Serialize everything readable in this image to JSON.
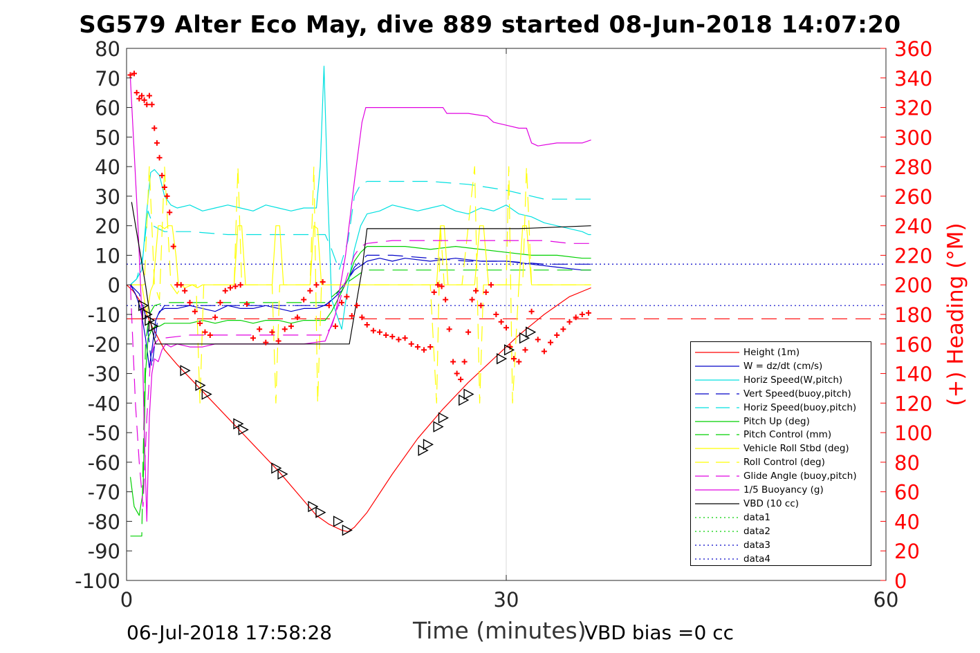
{
  "title": "SG579 Alter Eco May, dive 889 started 08-Jun-2018 14:07:20",
  "footer": {
    "date_stamp": "06-Jul-2018 17:58:28",
    "vbd_bias": "VBD bias =0 cc"
  },
  "colors": {
    "red": "#ff0000",
    "blue": "#0000c8",
    "cyan": "#00e0e0",
    "green": "#00d000",
    "yellow": "#ffff00",
    "magenta": "#e000e0",
    "black": "#000000"
  },
  "chart_data": {
    "type": "line",
    "title": "SG579 Alter Eco May, dive 889 started 08-Jun-2018 14:07:20",
    "xlabel": "Time (minutes)",
    "ylabel_right": "(+) Heading (°M)",
    "xlim": [
      0,
      60
    ],
    "ylim_left": [
      -100,
      80
    ],
    "ylim_right": [
      0,
      360
    ],
    "x_ticks": [
      0,
      30,
      60
    ],
    "x_tick_labels": [
      "0",
      "30",
      "60"
    ],
    "y_ticks_left": [
      80,
      70,
      60,
      50,
      40,
      30,
      20,
      10,
      0,
      -10,
      -20,
      -30,
      -40,
      -50,
      -60,
      -70,
      -80,
      -90,
      -100
    ],
    "y_tick_labels_left": [
      "80",
      "70",
      "60",
      "50",
      "40",
      "30",
      "20",
      "10",
      "0",
      "-10",
      "-20",
      "-30",
      "-40",
      "-50",
      "-60",
      "-70",
      "-80",
      "-90",
      "-100"
    ],
    "y_ticks_right": [
      360,
      340,
      320,
      300,
      280,
      260,
      240,
      220,
      200,
      180,
      160,
      140,
      120,
      100,
      80,
      60,
      40,
      20,
      0
    ],
    "y_tick_labels_right": [
      "360",
      "340",
      "320",
      "300",
      "280",
      "260",
      "240",
      "220",
      "200",
      "180",
      "160",
      "140",
      "120",
      "100",
      "80",
      "60",
      "40",
      "20",
      "0"
    ],
    "grid": "x-major",
    "legend_position": "lower-right",
    "series": [
      {
        "name": "Height (1m)",
        "color": "#ff0000",
        "dash": "solid",
        "x": [
          0,
          0.5,
          1,
          1.5,
          2,
          3,
          4,
          6,
          8,
          10,
          12,
          14,
          15,
          16,
          17,
          17.5,
          18,
          19,
          21,
          23,
          25,
          27,
          29,
          31,
          33,
          35,
          36.7
        ],
        "y": [
          0,
          -2,
          -5,
          -9,
          -14,
          -22,
          -27,
          -36,
          -45,
          -54,
          -63,
          -73,
          -78,
          -81,
          -83,
          -83.5,
          -82,
          -77,
          -64,
          -52,
          -42,
          -33,
          -25,
          -17,
          -10,
          -4,
          -1
        ]
      },
      {
        "name": "W = dz/dt (cm/s)",
        "color": "#0000c8",
        "dash": "solid",
        "x": [
          0.3,
          0.7,
          1.1,
          1.5,
          1.8,
          2.0,
          2.3,
          2.6,
          3.0,
          4,
          5,
          6,
          7,
          8,
          9,
          10,
          11,
          12,
          13,
          14,
          15,
          15.6,
          16,
          16.5,
          17,
          17.5,
          18,
          19,
          20,
          21,
          22,
          24,
          26,
          28,
          30,
          32,
          34,
          36,
          36.7
        ],
        "y": [
          0,
          -3,
          -8,
          -18,
          -28,
          -22,
          -12,
          -9,
          -8,
          -8,
          -7,
          -8,
          -9,
          -7,
          -8,
          -8,
          -7,
          -8,
          -9,
          -8,
          -8,
          -7,
          -6,
          -4,
          -2,
          2,
          5,
          8,
          9,
          8,
          9,
          8,
          9,
          8,
          8,
          7,
          6,
          5,
          5
        ]
      },
      {
        "name": "Horiz Speed(W,pitch)",
        "color": "#00e0e0",
        "dash": "solid",
        "x": [
          0.3,
          0.8,
          1.2,
          1.6,
          1.9,
          2.2,
          2.6,
          3.0,
          3.5,
          4,
          5,
          6,
          7,
          8,
          9,
          10,
          11,
          12,
          13,
          14,
          15,
          15.3,
          15.6,
          15.9,
          16.2,
          16.6,
          17,
          17.5,
          18,
          18.5,
          19,
          20,
          21,
          22,
          23,
          24,
          25,
          26,
          27,
          28,
          29,
          30,
          31,
          32,
          33,
          34,
          35,
          36,
          36.5,
          36.7
        ],
        "y": [
          0,
          2,
          5,
          25,
          38,
          39,
          37,
          30,
          27,
          26,
          27,
          25,
          26,
          27,
          26,
          25,
          27,
          26,
          25,
          26,
          26,
          40,
          74,
          30,
          -5,
          -10,
          -15,
          0,
          12,
          20,
          24,
          25,
          27,
          26,
          25,
          26,
          27,
          25,
          24,
          26,
          25,
          27,
          24,
          23,
          21,
          20,
          19,
          18,
          17,
          17
        ]
      },
      {
        "name": "Vert Speed(buoy,pitch)",
        "color": "#0000c8",
        "dash": "22,12",
        "x": [
          0.3,
          1.0,
          1.6,
          2.0,
          2.5,
          3,
          5,
          8,
          11,
          14,
          15.7,
          16.2,
          16.8,
          17.5,
          18,
          19,
          21,
          24,
          27,
          30,
          33,
          36.7
        ],
        "y": [
          0,
          -3,
          -12,
          -28,
          -10,
          -7,
          -7,
          -7,
          -7,
          -7,
          -7,
          -5,
          -2,
          2,
          6,
          10,
          10,
          9,
          8,
          8,
          7,
          7
        ]
      },
      {
        "name": "Horiz Speed(buoy,pitch)",
        "color": "#00e0e0",
        "dash": "22,12",
        "x": [
          0.3,
          0.8,
          1.3,
          1.7,
          2.1,
          2.5,
          3,
          5,
          8,
          11,
          14,
          15.7,
          16.2,
          16.8,
          17.5,
          18,
          18.5,
          19,
          21,
          24,
          27,
          30,
          33,
          36.7
        ],
        "y": [
          0,
          2,
          10,
          25,
          20,
          19,
          18,
          18,
          17,
          17,
          17,
          17,
          12,
          5,
          15,
          30,
          34,
          35,
          35,
          35,
          34,
          32,
          29,
          29
        ]
      },
      {
        "name": "Pitch Up (deg)",
        "color": "#00d000",
        "dash": "solid",
        "x": [
          0.3,
          0.6,
          1.0,
          1.3,
          1.5,
          1.7,
          2.0,
          2.3,
          2.6,
          3,
          4,
          5,
          6,
          7,
          8,
          9,
          10,
          11,
          12,
          13,
          14,
          15,
          15.7,
          16.2,
          16.8,
          17.5,
          18,
          18.5,
          19,
          20,
          22,
          24,
          26,
          28,
          30,
          32,
          34,
          36,
          36.7
        ],
        "y": [
          -65,
          -75,
          -78,
          -70,
          -30,
          -18,
          -15,
          -14,
          -14,
          -13,
          -13,
          -13,
          -12,
          -13,
          -12,
          -12,
          -13,
          -12,
          -12,
          -13,
          -12,
          -12,
          -12,
          -9,
          -4,
          2,
          8,
          11,
          13,
          13,
          13,
          12,
          13,
          12,
          11,
          10,
          10,
          9,
          9
        ]
      },
      {
        "name": "Pitch Control (mm)",
        "color": "#00d000",
        "dash": "22,12",
        "x": [
          0.3,
          1.2,
          1.3,
          1.5,
          1.8,
          2.2,
          3,
          8,
          14,
          15.7,
          16.5,
          17.5,
          18.5,
          19,
          24,
          30,
          36.7
        ],
        "y": [
          -85,
          -85,
          -60,
          -20,
          -10,
          -7,
          -6,
          -6,
          -6,
          -6,
          -3,
          1,
          4,
          5,
          5,
          5,
          5
        ]
      },
      {
        "name": "Vehicle Roll Stbd (deg)",
        "color": "#ffff00",
        "dash": "solid",
        "x": [
          0.3,
          1.2,
          1.6,
          1.9,
          2.1,
          2.3,
          2.5,
          2.7,
          3.0,
          3.3,
          3.6,
          3.9,
          4.1,
          4.3,
          4.6,
          5.2,
          5.6,
          6.0,
          8.5,
          8.8,
          9.1,
          9.4,
          11.5,
          11.8,
          12.1,
          12.4,
          14.5,
          14.8,
          15.1,
          15.4,
          16.2,
          17.0,
          17.8,
          18.6,
          19.5,
          20.5,
          22,
          24.5,
          24.8,
          25.1,
          25.4,
          27.5,
          27.9,
          28.2,
          28.6,
          31.0,
          31.3,
          31.6,
          32,
          33,
          36.7
        ],
        "y": [
          0,
          0,
          -10,
          -2,
          0,
          10,
          20,
          20,
          19,
          20,
          20,
          10,
          0,
          0,
          -1,
          0,
          -1,
          0,
          0,
          20,
          20,
          0,
          0,
          20,
          20,
          0,
          0,
          20,
          19,
          0,
          0,
          0,
          0,
          0,
          0,
          0,
          0,
          0,
          20,
          20,
          0,
          0,
          20,
          20,
          0,
          0,
          20,
          20,
          0,
          0,
          0
        ]
      },
      {
        "name": "Roll Control (deg)",
        "color": "#ffff00",
        "dash": "22,12",
        "x": [
          0.3,
          1.4,
          1.8,
          2.2,
          2.6,
          3.0,
          3.5,
          4.0,
          4.4,
          5.5,
          5.8,
          6.1,
          8.5,
          8.8,
          9.1,
          11.5,
          11.8,
          12.1,
          14.5,
          14.8,
          15.1,
          15.4,
          16,
          20,
          24,
          24.5,
          24.8,
          25.1,
          26.5,
          27.5,
          27.9,
          28.2,
          30,
          30.2,
          30.5,
          31.0,
          31.3,
          31.6,
          32,
          36.7
        ],
        "y": [
          0,
          0,
          40,
          0,
          -5,
          40,
          0,
          -3,
          0,
          0,
          -40,
          0,
          0,
          40,
          0,
          0,
          -40,
          0,
          0,
          40,
          -40,
          0,
          0,
          0,
          0,
          -40,
          20,
          0,
          0,
          40,
          -40,
          0,
          0,
          40,
          -40,
          0,
          0,
          40,
          0,
          0
        ]
      },
      {
        "name": "Glide Angle (buoy,pitch)",
        "color": "#e000e0",
        "dash": "22,12",
        "x": [
          0.3,
          0.7,
          1.0,
          1.3,
          1.6,
          1.9,
          2.2,
          2.6,
          3,
          5,
          8,
          11,
          14,
          15.7,
          16.2,
          16.8,
          17.5,
          18,
          18.5,
          19,
          21,
          24,
          27,
          30,
          33,
          35,
          36.7
        ],
        "y": [
          0,
          -40,
          -60,
          -75,
          -45,
          -25,
          -20,
          -18,
          -18,
          -17,
          -17,
          -17,
          -17,
          -17,
          -14,
          -6,
          4,
          10,
          13,
          14,
          15,
          15,
          15,
          15,
          15,
          14,
          14
        ]
      },
      {
        "name": "1/5 Buoyancy (g)",
        "color": "#e000e0",
        "dash": "solid",
        "x": [
          0.3,
          0.6,
          0.9,
          1.2,
          1.4,
          1.6,
          1.8,
          2.0,
          2.2,
          2.5,
          2.8,
          3.1,
          3.5,
          4,
          5,
          6,
          7,
          8,
          9,
          10,
          12,
          14,
          15.7,
          16.5,
          17.3,
          18.0,
          18.6,
          18.9,
          19.5,
          22,
          25,
          25.3,
          27,
          28.5,
          29,
          30,
          31,
          31.6,
          32,
          32.5,
          34,
          36,
          36.7
        ],
        "y": [
          70,
          45,
          20,
          -10,
          -50,
          -80,
          -45,
          -30,
          -25,
          -26,
          -22,
          -20,
          -21,
          -20,
          -21,
          -21,
          -20,
          -20,
          -20,
          -20,
          -20,
          -20,
          -19,
          -10,
          10,
          35,
          55,
          60,
          60,
          60,
          60,
          58,
          58,
          57,
          55,
          54,
          53,
          53,
          48,
          47,
          48,
          48,
          49
        ]
      },
      {
        "name": "VBD (10 cc)",
        "color": "#000000",
        "dash": "solid",
        "x": [
          0.4,
          1.5,
          2.0,
          2.3,
          8,
          12,
          15.8,
          17.6,
          18.6,
          19.0,
          25,
          31,
          36.7
        ],
        "y": [
          28,
          0,
          -15,
          -20,
          -20,
          -20,
          -20,
          -20,
          5,
          19,
          19,
          19,
          20
        ]
      },
      {
        "name": "data1",
        "color": "#00d000",
        "dash": "2,4",
        "x": [],
        "y": []
      },
      {
        "name": "data2",
        "color": "#00d000",
        "dash": "2,4",
        "x": [],
        "y": []
      },
      {
        "name": "data3",
        "color": "#0000c8",
        "dash": "2,4",
        "x": [],
        "y": []
      },
      {
        "name": "data4",
        "color": "#0000c8",
        "dash": "2,4",
        "x": [],
        "y": []
      }
    ],
    "reference_lines": [
      {
        "axis": "y",
        "value": 7,
        "color": "#0000c8",
        "dash": "2,4"
      },
      {
        "axis": "y",
        "value": -7,
        "color": "#0000c8",
        "dash": "2,4"
      },
      {
        "axis": "y",
        "value": -11.5,
        "color": "#ff0000",
        "dash": "22,12"
      }
    ],
    "heading_markers": {
      "axis": "right",
      "color": "#ff0000",
      "marker": "+",
      "x": [
        0.3,
        0.6,
        0.8,
        1.0,
        1.2,
        1.4,
        1.6,
        1.8,
        2.0,
        2.2,
        2.4,
        2.6,
        2.8,
        3.0,
        3.2,
        3.4,
        3.7,
        4.0,
        4.3,
        4.6,
        5.0,
        5.4,
        5.8,
        6.2,
        6.6,
        7.0,
        7.4,
        7.8,
        8.2,
        8.6,
        9.0,
        9.5,
        10.0,
        10.5,
        11.0,
        11.5,
        12.0,
        12.5,
        13.0,
        13.5,
        14.0,
        14.5,
        15.0,
        15.5,
        16.0,
        16.5,
        17.0,
        17.4,
        17.8,
        18.2,
        18.6,
        19.0,
        19.5,
        20.0,
        20.5,
        21.0,
        21.5,
        22.0,
        22.5,
        23.0,
        23.5,
        24.0,
        24.3,
        24.6,
        24.9,
        25.2,
        25.5,
        25.8,
        26.1,
        26.4,
        26.7,
        27.0,
        27.3,
        27.6,
        28.0,
        28.4,
        28.8,
        29.2,
        29.6,
        30.0,
        30.3,
        30.6,
        31.0,
        31.5,
        32.0,
        32.5,
        33.0,
        33.5,
        34.0,
        34.5,
        35.0,
        35.5,
        36.0,
        36.5
      ],
      "y": [
        342,
        343,
        330,
        326,
        328,
        325,
        322,
        328,
        322,
        306,
        296,
        286,
        274,
        266,
        260,
        249,
        226,
        200,
        200,
        196,
        188,
        182,
        174,
        168,
        166,
        178,
        188,
        196,
        198,
        199,
        200,
        187,
        164,
        170,
        161,
        168,
        162,
        170,
        172,
        178,
        190,
        196,
        200,
        202,
        186,
        172,
        188,
        192,
        179,
        186,
        178,
        173,
        169,
        168,
        166,
        165,
        163,
        164,
        160,
        158,
        156,
        158,
        195,
        200,
        199,
        190,
        170,
        148,
        140,
        136,
        148,
        168,
        190,
        196,
        186,
        195,
        200,
        180,
        175,
        171,
        158,
        150,
        148,
        156,
        182,
        163,
        155,
        161,
        166,
        170,
        175,
        178,
        180,
        181
      ]
    },
    "depth_markers": {
      "axis": "left",
      "color": "#000000",
      "marker": "triangle",
      "x": [
        1.3,
        1.6,
        1.8,
        2.1,
        4.6,
        5.8,
        6.3,
        8.8,
        9.2,
        11.8,
        12.3,
        14.7,
        15.3,
        16.7,
        17.4,
        23.4,
        23.8,
        24.6,
        25.0,
        26.6,
        27.0,
        29.6,
        30.2,
        31.4,
        31.9
      ],
      "y": [
        -7,
        -10,
        -12,
        -14,
        -29,
        -34,
        -37,
        -47,
        -49,
        -62,
        -64,
        -75,
        -77,
        -80,
        -83,
        -56,
        -54,
        -48,
        -45,
        -39,
        -37,
        -25,
        -22,
        -18,
        -16
      ]
    }
  }
}
